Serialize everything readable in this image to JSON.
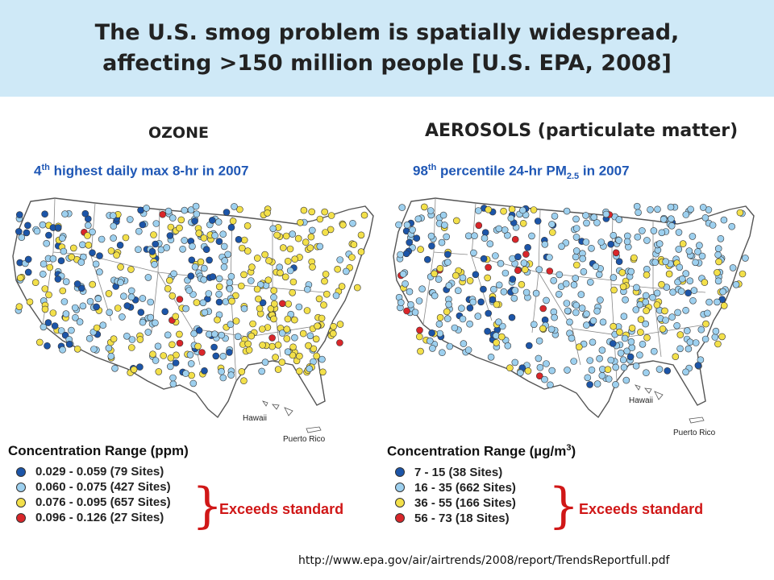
{
  "title": {
    "line1": "The U.S. smog problem is spatially widespread,",
    "line2": "affecting >150 million people [U.S. EPA, 2008]"
  },
  "ozone": {
    "heading": "OZONE",
    "metric_pre": "4",
    "metric_sup": "th",
    "metric_post": " highest daily max 8-hr in 2007",
    "hawaii_label": "Hawaii",
    "puerto_rico_label": "Puerto Rico",
    "legend_title": "Concentration Range (ppm)",
    "legend": [
      {
        "label": "0.029 - 0.059 (79 Sites)",
        "color": "#1c55a8"
      },
      {
        "label": "0.060 - 0.075 (427 Sites)",
        "color": "#9dd0ef"
      },
      {
        "label": "0.076 - 0.095 (657 Sites)",
        "color": "#f3e04a"
      },
      {
        "label": "0.096 - 0.126 (27 Sites)",
        "color": "#d9262a"
      }
    ],
    "exceeds_label": "Exceeds standard"
  },
  "aerosols": {
    "heading": "AEROSOLS",
    "heading_sub": " (particulate matter)",
    "metric_pre": "98",
    "metric_sup": "th",
    "metric_mid": " percentile 24-hr PM",
    "metric_sub": "2.5",
    "metric_post": " in 2007",
    "hawaii_label": "Hawaii",
    "puerto_rico_label": "Puerto Rico",
    "legend_title_pre": "Concentration Range (µg/m",
    "legend_title_sup": "3",
    "legend_title_post": ")",
    "legend": [
      {
        "label": "7 - 15 (38 Sites)",
        "color": "#1c55a8"
      },
      {
        "label": "16 - 35 (662 Sites)",
        "color": "#9dd0ef"
      },
      {
        "label": "36 - 55 (166 Sites)",
        "color": "#f3e04a"
      },
      {
        "label": "56 - 73 (18 Sites)",
        "color": "#d9262a"
      }
    ],
    "exceeds_label": "Exceeds standard"
  },
  "brace_glyph": "}",
  "source_url": "http://www.epa.gov/air/airtrends/2008/report/TrendsReportfull.pdf"
}
